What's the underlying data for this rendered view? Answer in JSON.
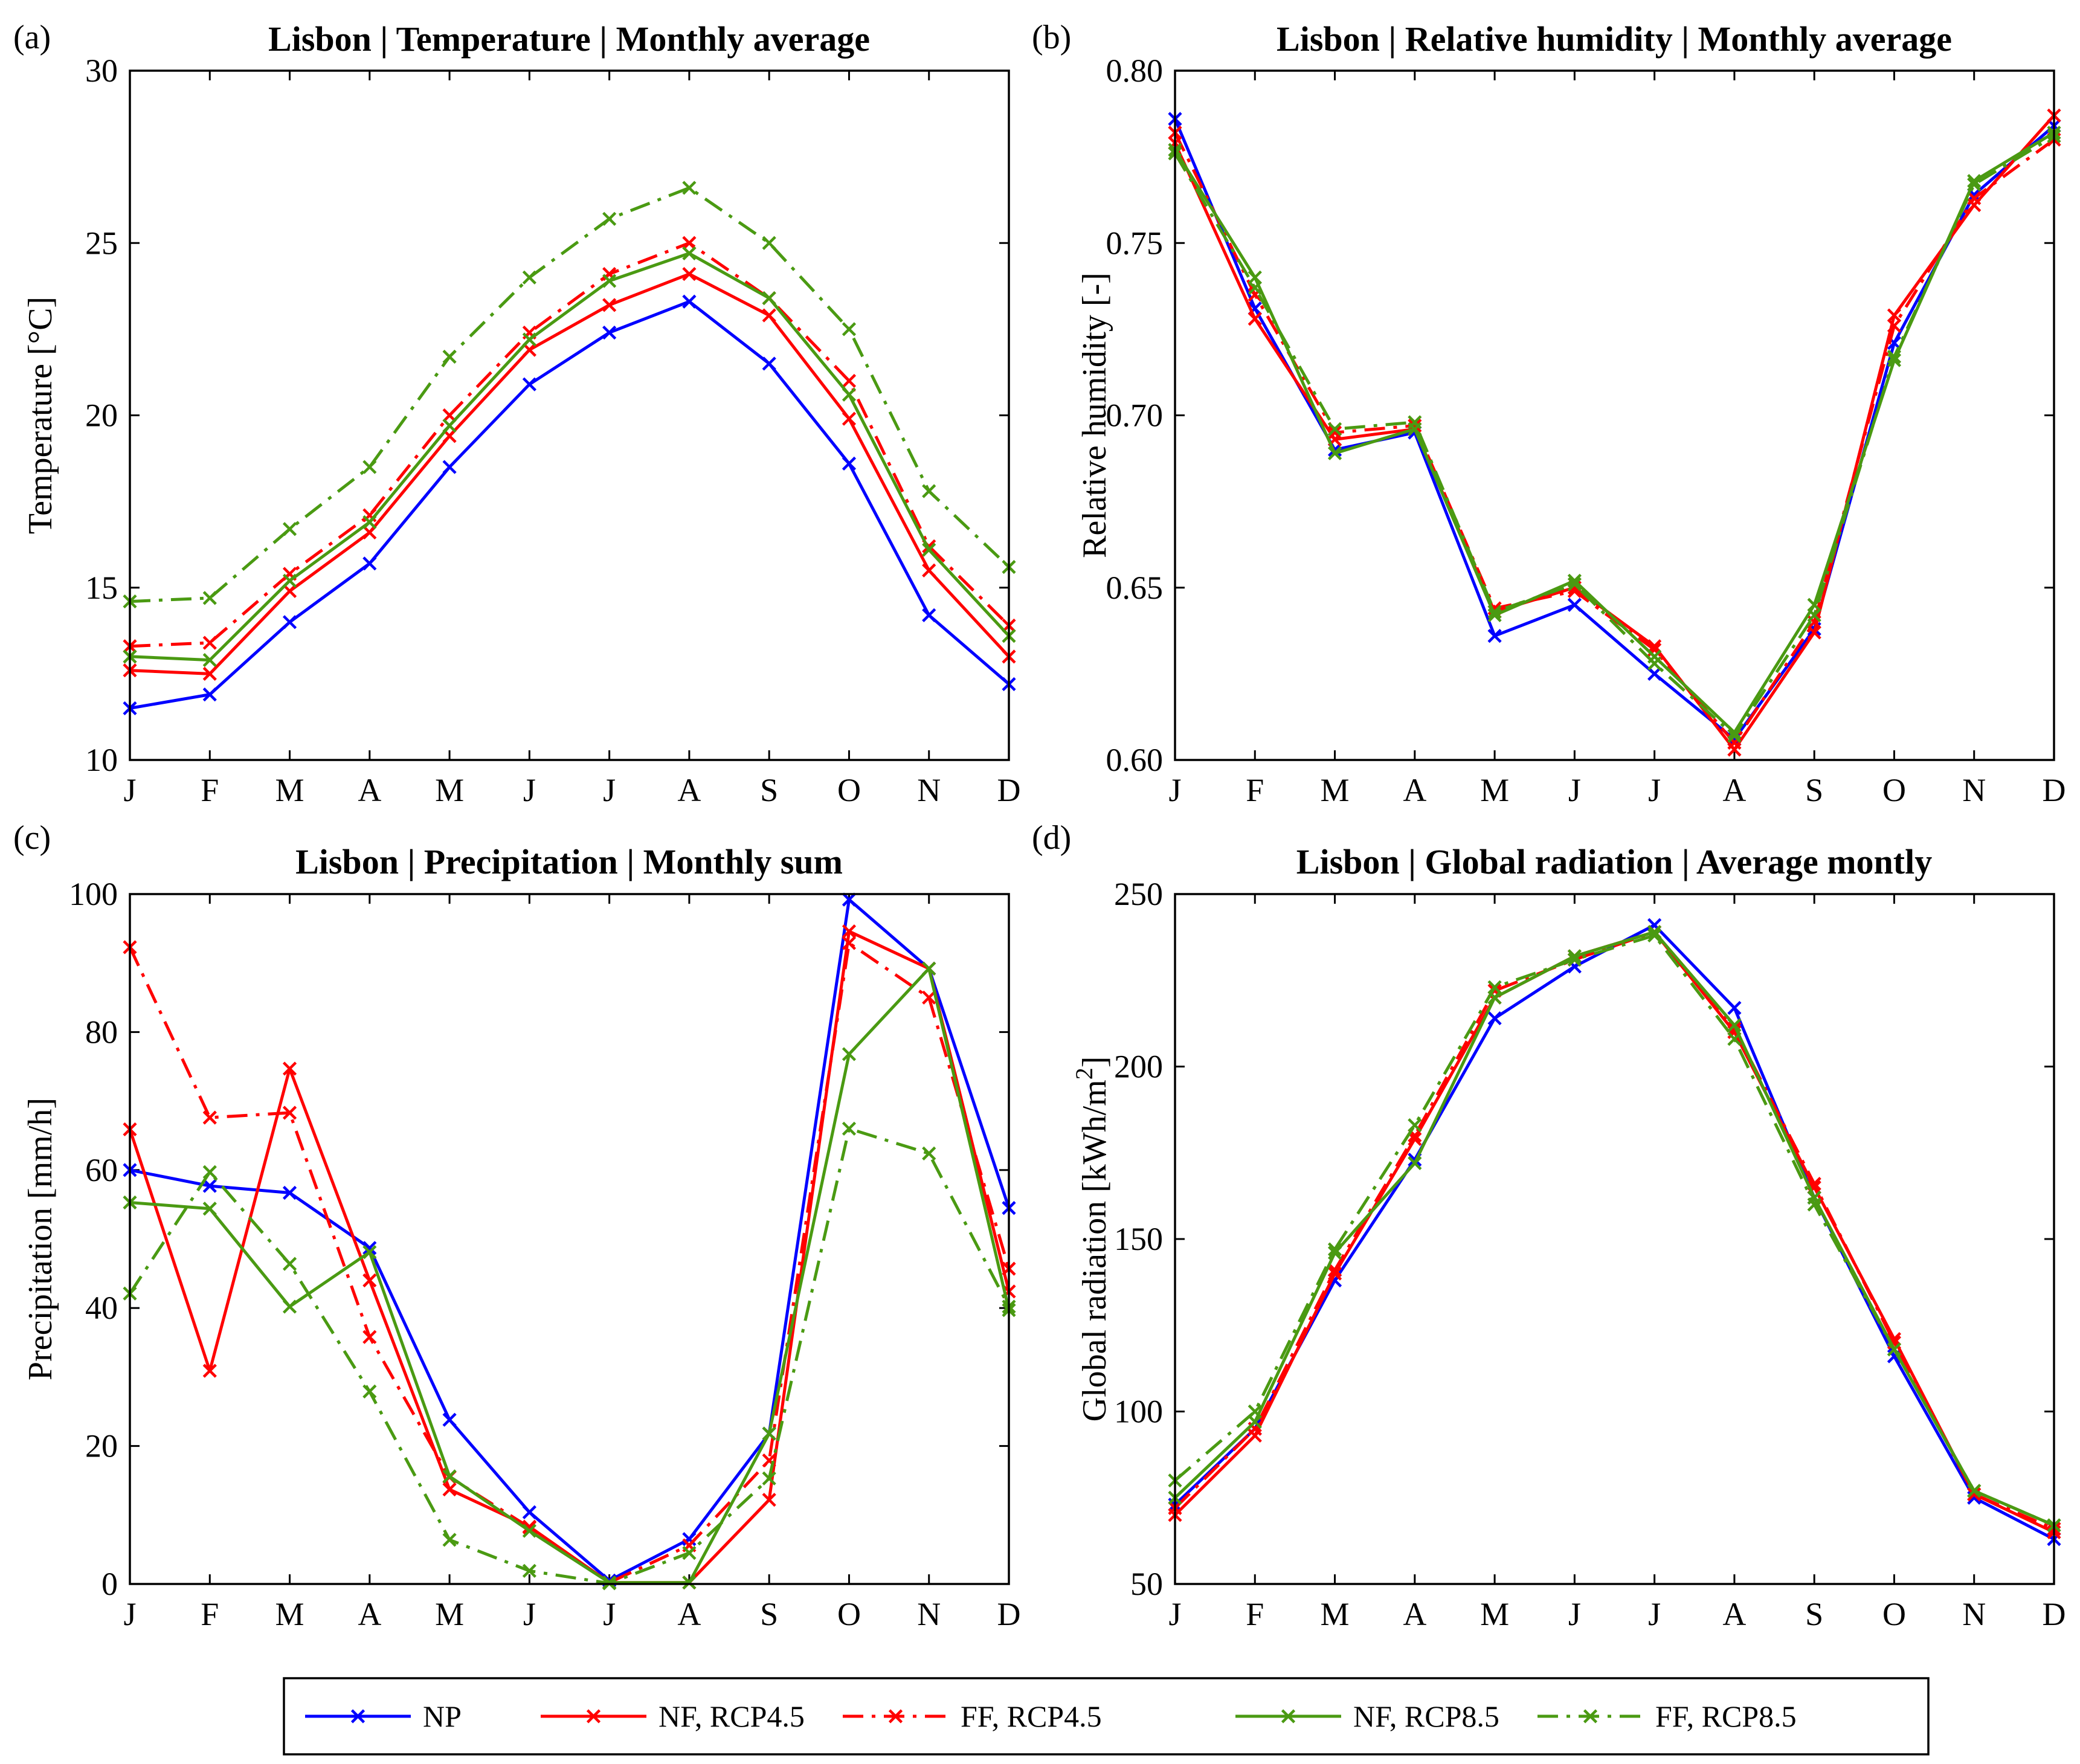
{
  "chart_data": [
    {
      "panel": "(a)",
      "type": "line",
      "title": "Lisbon | Temperature | Monthly average",
      "xlabel": "",
      "ylabel": "Temperature [°C]",
      "categories": [
        "J",
        "F",
        "M",
        "A",
        "M",
        "J",
        "J",
        "A",
        "S",
        "O",
        "N",
        "D"
      ],
      "ylim": [
        10,
        30
      ],
      "yticks": [
        10,
        15,
        20,
        25,
        30
      ],
      "series": [
        {
          "name": "NP",
          "values": [
            11.5,
            11.9,
            14.0,
            15.7,
            18.5,
            20.9,
            22.4,
            23.3,
            21.5,
            18.6,
            14.2,
            12.2
          ]
        },
        {
          "name": "NF, RCP4.5",
          "values": [
            12.6,
            12.5,
            14.9,
            16.6,
            19.4,
            21.9,
            23.2,
            24.1,
            22.9,
            19.9,
            15.5,
            13.0
          ]
        },
        {
          "name": "FF, RCP4.5",
          "values": [
            13.3,
            13.4,
            15.4,
            17.1,
            20.0,
            22.4,
            24.1,
            25.0,
            23.4,
            21.0,
            16.2,
            13.9
          ]
        },
        {
          "name": "NF, RCP8.5",
          "values": [
            13.0,
            12.9,
            15.2,
            16.9,
            19.7,
            22.2,
            23.9,
            24.7,
            23.4,
            20.6,
            16.1,
            13.6
          ]
        },
        {
          "name": "FF, RCP8.5",
          "values": [
            14.6,
            14.7,
            16.7,
            18.5,
            21.7,
            24.0,
            25.7,
            26.6,
            25.0,
            22.5,
            17.8,
            15.6
          ]
        }
      ]
    },
    {
      "panel": "(b)",
      "type": "line",
      "title": "Lisbon | Relative humidity | Monthly average",
      "xlabel": "",
      "ylabel": "Relative humidity [-]",
      "categories": [
        "J",
        "F",
        "M",
        "A",
        "M",
        "J",
        "J",
        "A",
        "S",
        "O",
        "N",
        "D"
      ],
      "ylim": [
        0.6,
        0.8
      ],
      "yticks": [
        "0.60",
        "0.65",
        "0.70",
        "0.75",
        "0.80"
      ],
      "series": [
        {
          "name": "NP",
          "values": [
            0.786,
            0.731,
            0.69,
            0.695,
            0.636,
            0.645,
            0.625,
            0.606,
            0.638,
            0.721,
            0.764,
            0.784
          ]
        },
        {
          "name": "NF, RCP4.5",
          "values": [
            0.779,
            0.728,
            0.693,
            0.696,
            0.643,
            0.65,
            0.633,
            0.603,
            0.637,
            0.729,
            0.761,
            0.787
          ]
        },
        {
          "name": "FF, RCP4.5",
          "values": [
            0.782,
            0.735,
            0.695,
            0.697,
            0.644,
            0.649,
            0.632,
            0.605,
            0.64,
            0.726,
            0.763,
            0.78
          ]
        },
        {
          "name": "NF, RCP8.5",
          "values": [
            0.777,
            0.74,
            0.689,
            0.696,
            0.642,
            0.652,
            0.63,
            0.608,
            0.645,
            0.716,
            0.768,
            0.782
          ]
        },
        {
          "name": "FF, RCP8.5",
          "values": [
            0.776,
            0.737,
            0.696,
            0.698,
            0.643,
            0.651,
            0.628,
            0.607,
            0.642,
            0.717,
            0.767,
            0.781
          ]
        }
      ]
    },
    {
      "panel": "(c)",
      "type": "line",
      "title": "Lisbon | Precipitation | Monthly sum",
      "xlabel": "",
      "ylabel": "Precipitation [mm/h]",
      "categories": [
        "J",
        "F",
        "M",
        "A",
        "M",
        "J",
        "J",
        "A",
        "S",
        "O",
        "N",
        "D"
      ],
      "ylim": [
        0,
        100
      ],
      "yticks": [
        0,
        20,
        40,
        60,
        80,
        100
      ],
      "series": [
        {
          "name": "NP",
          "values": [
            60.0,
            57.7,
            56.7,
            48.7,
            23.8,
            10.4,
            0.5,
            6.5,
            21.8,
            99.2,
            89.2,
            54.5
          ]
        },
        {
          "name": "NF, RCP4.5",
          "values": [
            65.9,
            30.9,
            74.7,
            44.0,
            13.7,
            8.3,
            0.2,
            0.2,
            12.2,
            94.6,
            89.2,
            42.4
          ]
        },
        {
          "name": "FF, RCP4.5",
          "values": [
            92.3,
            67.6,
            68.3,
            35.8,
            15.5,
            8.2,
            0.2,
            5.6,
            17.9,
            92.9,
            85.0,
            45.7
          ]
        },
        {
          "name": "NF, RCP8.5",
          "values": [
            55.3,
            54.4,
            40.2,
            48.1,
            15.6,
            7.7,
            0.2,
            0.2,
            21.8,
            76.8,
            89.2,
            39.7
          ]
        },
        {
          "name": "FF, RCP8.5",
          "values": [
            42.1,
            59.7,
            46.4,
            27.9,
            6.4,
            1.9,
            0.1,
            4.5,
            15.3,
            66.0,
            62.4,
            40.2
          ]
        }
      ]
    },
    {
      "panel": "(d)",
      "type": "line",
      "title": "Lisbon | Global radiation | Average montly",
      "xlabel": "",
      "ylabel": "Global radiation [kWh/m",
      "ylabel_superscript": "2",
      "ylabel_suffix": "]",
      "categories": [
        "J",
        "F",
        "M",
        "A",
        "M",
        "J",
        "J",
        "A",
        "S",
        "O",
        "N",
        "D"
      ],
      "ylim": [
        50,
        250
      ],
      "yticks": [
        50,
        100,
        150,
        200,
        250
      ],
      "series": [
        {
          "name": "NP",
          "values": [
            73,
            95,
            138,
            173,
            214,
            229,
            241,
            217,
            162,
            116,
            75,
            63
          ]
        },
        {
          "name": "NF, RCP4.5",
          "values": [
            70,
            93,
            140,
            179,
            220,
            232,
            239,
            210,
            165,
            121,
            76,
            65
          ]
        },
        {
          "name": "FF, RCP4.5",
          "values": [
            72,
            95,
            141,
            180,
            222,
            231,
            239,
            211,
            166,
            120,
            76,
            66
          ]
        },
        {
          "name": "NF, RCP8.5",
          "values": [
            75,
            97,
            146,
            172,
            220,
            232,
            239,
            212,
            162,
            118,
            77,
            67
          ]
        },
        {
          "name": "FF, RCP8.5",
          "values": [
            80,
            100,
            147,
            183,
            223,
            231,
            238,
            208,
            160,
            118,
            77,
            67
          ]
        }
      ]
    }
  ],
  "legend": {
    "entries": [
      {
        "name": "NP",
        "color": "#0000ff",
        "dash": "solid"
      },
      {
        "name": "NF, RCP4.5",
        "color": "#ff0000",
        "dash": "solid"
      },
      {
        "name": "FF, RCP4.5",
        "color": "#ff0000",
        "dash": "dashdot"
      },
      {
        "name": "NF, RCP8.5",
        "color": "#4a9a12",
        "dash": "solid"
      },
      {
        "name": "FF, RCP8.5",
        "color": "#4a9a12",
        "dash": "dashdot"
      }
    ]
  }
}
